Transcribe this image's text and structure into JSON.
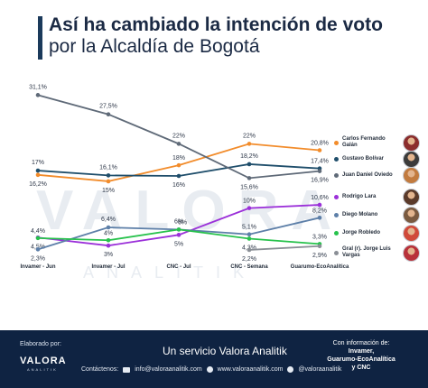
{
  "header": {
    "title": "Así ha cambiado la intención de voto",
    "subtitle": "por la Alcaldía de Bogotá"
  },
  "watermark": {
    "main": "VALORA",
    "sub": "ANALITIK"
  },
  "chart_data": {
    "type": "line",
    "categories": [
      "Invamer - Jun",
      "Invamer - Jul",
      "CNC - Jul",
      "CNC - Semana",
      "Guarumo-EcoAnalítica"
    ],
    "ylim": [
      0,
      32
    ],
    "grid": false,
    "legend_position": "right",
    "series": [
      {
        "name": "Carlos Fernando Galán",
        "color": "#f28c2b",
        "values": [
          16.2,
          15,
          18,
          22,
          20.8
        ],
        "labels": [
          "16,2%",
          "15%",
          "18%",
          "22%",
          "20,8%"
        ]
      },
      {
        "name": "Gustavo Bolívar",
        "color": "#1f4e6b",
        "values": [
          17,
          16.1,
          16,
          18.2,
          17.4
        ],
        "labels": [
          "17%",
          "16,1%",
          "16%",
          "18,2%",
          "17,4%"
        ]
      },
      {
        "name": "Juan Daniel Oviedo",
        "color": "#5f6a78",
        "values": [
          31.1,
          27.5,
          22,
          15.6,
          16.9
        ],
        "labels": [
          "31,1%",
          "27,5%",
          "22%",
          "15,6%",
          "16,9%"
        ]
      },
      {
        "name": "Rodrigo Lara",
        "color": "#9b30d9",
        "values": [
          4.5,
          3,
          5,
          10,
          10.6
        ],
        "labels": [
          "4,5%",
          "3%",
          "5%",
          "10%",
          "10,6%"
        ]
      },
      {
        "name": "Diego Molano",
        "color": "#5d7fa8",
        "values": [
          2.3,
          6.4,
          6,
          5.1,
          8.2
        ],
        "labels": [
          "2,3%",
          "6,4%",
          "6%",
          "5,1%",
          "8,2%"
        ]
      },
      {
        "name": "Jorge Robledo",
        "color": "#27c24c",
        "values": [
          4.4,
          4,
          6,
          4.3,
          3.3
        ],
        "labels": [
          "4,4%",
          "4%",
          "6%",
          "4,3%",
          "3,3%"
        ]
      },
      {
        "name": "Gral (r). Jorge Luis Vargas",
        "color": "#8a8f96",
        "values": [
          null,
          null,
          null,
          2.2,
          2.9
        ],
        "labels": [
          "",
          "",
          "",
          "2,2%",
          "2,9%"
        ]
      }
    ]
  },
  "legend": {
    "items": [
      {
        "name": "Carlos Fernando Galán",
        "color": "#f28c2b",
        "avatar_color": "#8b2d2d"
      },
      {
        "name": "Gustavo Bolívar",
        "color": "#1f4e6b",
        "avatar_color": "#3b3b3b"
      },
      {
        "name": "Juan Daniel Oviedo",
        "color": "#5f6a78",
        "avatar_color": "#c27b3f"
      },
      {
        "name": "Rodrigo Lara",
        "color": "#9b30d9",
        "avatar_color": "#5a3a2a"
      },
      {
        "name": "Diego Molano",
        "color": "#5d7fa8",
        "avatar_color": "#7a5a40"
      },
      {
        "name": "Jorge Robledo",
        "color": "#27c24c",
        "avatar_color": "#d04a3a"
      },
      {
        "name": "Gral (r). Jorge Luis Vargas",
        "color": "#8a8f96",
        "avatar_color": "#b8323a"
      }
    ]
  },
  "footer": {
    "elaborated_by": "Elaborado por:",
    "logo": "VALORA",
    "logo_sub": "ANALITIK",
    "service": "Un servicio Valora Analitik",
    "contacts_label": "Contáctenos:",
    "email": "info@valoraanalitik.com",
    "website": "www.valoraanalitik.com",
    "twitter": "@valoraanalitik",
    "info_line1": "Con información de:",
    "info_line2": "Invamer,",
    "info_line3": "Guarumo-EcoAnalítica",
    "info_line4": "y CNC",
    "colors": {
      "background": "#0f2342"
    }
  }
}
